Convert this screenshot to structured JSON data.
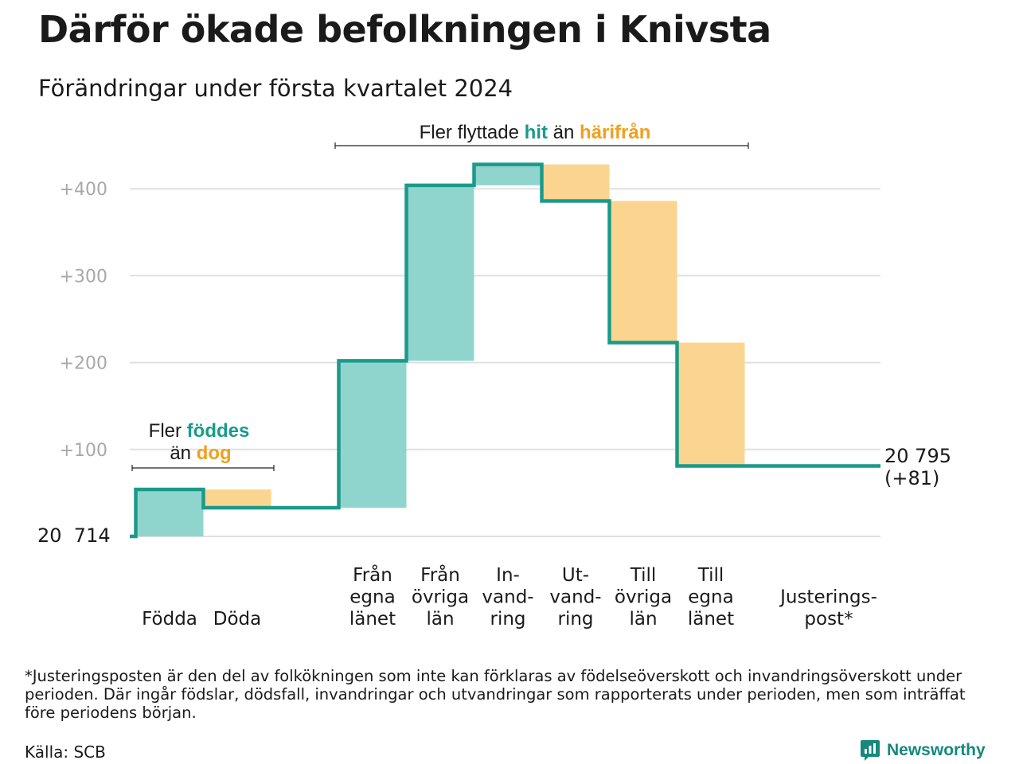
{
  "title": "Därför ökade befolkningen i Knivsta",
  "subtitle": "Förändringar under första kvartalet 2024",
  "colors": {
    "increase": "#8fd5cd",
    "decrease": "#fbd58f",
    "line": "#1a9a8a",
    "accent_teal": "#1a9a8a",
    "accent_orange": "#f0a01e",
    "grid": "#e0e0e0"
  },
  "annotations": {
    "births": {
      "line1": "Fler",
      "teal": "föddes",
      "line2": "än",
      "orange": "dog"
    },
    "migration": {
      "prefix": "Fler flyttade",
      "teal": "hit",
      "middle": "än",
      "orange": "härifrån"
    }
  },
  "start_label": "20  714",
  "end_label": {
    "line1": "20 795",
    "line2": "(+81)"
  },
  "chart_data": {
    "type": "bar",
    "subtype": "waterfall",
    "baseline_population": 20714,
    "end_population": 20795,
    "net_change": 81,
    "ylim": [
      0,
      440
    ],
    "yticks": [
      {
        "value": 100,
        "label": "+100"
      },
      {
        "value": 200,
        "label": "+200"
      },
      {
        "value": 300,
        "label": "+300"
      },
      {
        "value": 400,
        "label": "+400"
      }
    ],
    "categories": [
      {
        "name": "Födda",
        "lines": [
          "Födda"
        ],
        "value": 54
      },
      {
        "name": "Döda",
        "lines": [
          "Döda"
        ],
        "value": -21
      },
      {
        "name": "Från egna länet",
        "lines": [
          "Från",
          "egna",
          "länet"
        ],
        "value": 169
      },
      {
        "name": "Från övriga län",
        "lines": [
          "Från",
          "övriga",
          "län"
        ],
        "value": 202
      },
      {
        "name": "Invandring",
        "lines": [
          "In-",
          "vand-",
          "ring"
        ],
        "value": 24
      },
      {
        "name": "Utvandring",
        "lines": [
          "Ut-",
          "vand-",
          "ring"
        ],
        "value": -42
      },
      {
        "name": "Till övriga län",
        "lines": [
          "Till",
          "övriga",
          "län"
        ],
        "value": -163
      },
      {
        "name": "Till egna länet",
        "lines": [
          "Till",
          "egna",
          "länet"
        ],
        "value": -142
      },
      {
        "name": "Justeringspost*",
        "lines": [
          "Justerings-",
          "post*"
        ],
        "value": 0
      }
    ]
  },
  "footnote": "*Justeringsposten är den del av folkökningen som inte kan förklaras av födelseöverskott och invandringsöverskott under perioden. Där ingår födslar, dödsfall, invandringar och utvandringar som rapporterats under perioden, men som inträffat före periodens början.",
  "source": "Källa: SCB",
  "brand": {
    "name": "Newsworthy",
    "icon": "newsworthy-logo-icon"
  }
}
